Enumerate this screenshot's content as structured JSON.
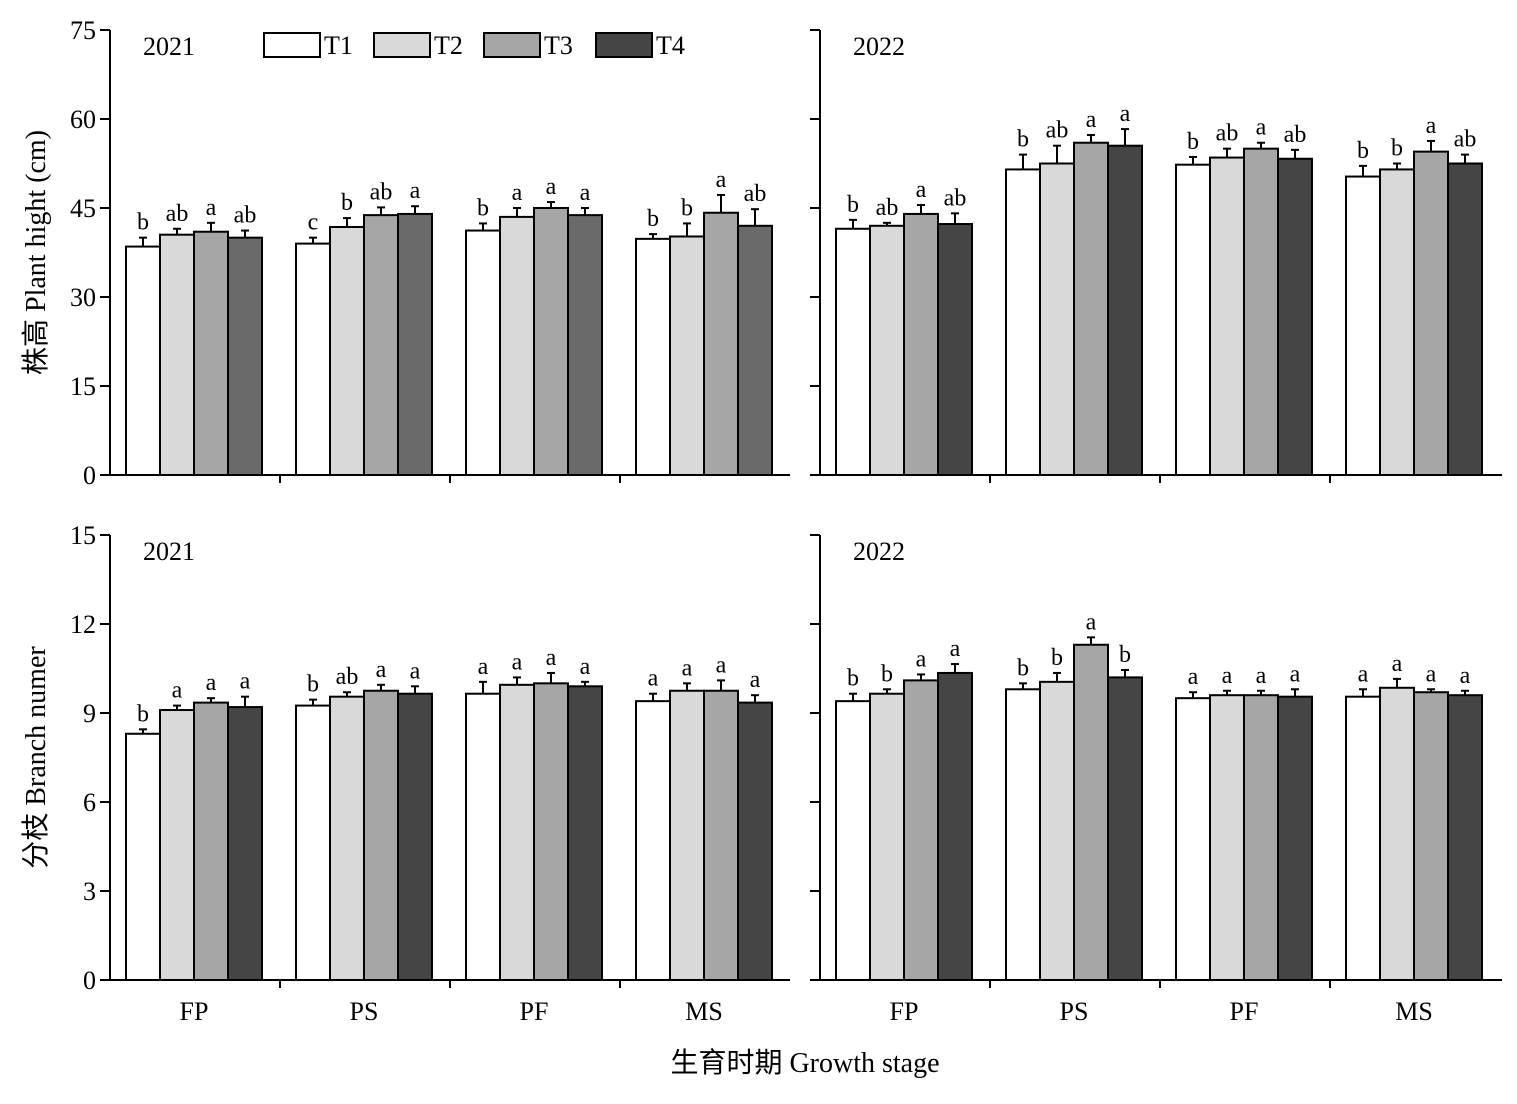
{
  "chart_data": {
    "type": "bar",
    "series_names": [
      "T1",
      "T2",
      "T3",
      "T4"
    ],
    "colors": {
      "T1": "#ffffff",
      "T2": "#d9d9d9",
      "T3": "#a6a6a6",
      "T4_2021_height": "#6a6a6a",
      "T4_dark": "#454545"
    },
    "categories": [
      "FP",
      "PS",
      "PF",
      "MS"
    ],
    "xlabel": "生育时期 Growth stage",
    "rows": [
      {
        "ylabel": "株高 Plant hight (cm)",
        "ylim": [
          0,
          75
        ],
        "yticks": [
          "0",
          "15",
          "30",
          "45",
          "60",
          "75"
        ],
        "panels": [
          {
            "year": "2021",
            "values": [
              [
                38.5,
                40.5,
                41,
                40
              ],
              [
                39,
                41.8,
                43.8,
                44
              ],
              [
                41.2,
                43.5,
                45,
                43.8
              ],
              [
                39.8,
                40.2,
                44.2,
                42
              ]
            ],
            "errors": [
              [
                1.5,
                1,
                1.5,
                1.2
              ],
              [
                1,
                1.5,
                1.3,
                1.3
              ],
              [
                1.2,
                1.5,
                1,
                1.2
              ],
              [
                0.8,
                2.2,
                3,
                2.8
              ]
            ],
            "sig": [
              [
                "b",
                "ab",
                "a",
                "ab"
              ],
              [
                "c",
                "b",
                "ab",
                "a"
              ],
              [
                "b",
                "a",
                "a",
                "a"
              ],
              [
                "b",
                "b",
                "a",
                "ab"
              ]
            ],
            "t4_color": "#6a6a6a"
          },
          {
            "year": "2022",
            "values": [
              [
                41.5,
                42,
                44,
                42.3
              ],
              [
                51.5,
                52.5,
                56,
                55.5
              ],
              [
                52.3,
                53.5,
                55,
                53.3
              ],
              [
                50.3,
                51.5,
                54.5,
                52.5
              ]
            ],
            "errors": [
              [
                1.5,
                0.5,
                1.5,
                1.8
              ],
              [
                2.5,
                3,
                1.3,
                2.8
              ],
              [
                1.3,
                1.5,
                1,
                1.5
              ],
              [
                1.8,
                1,
                1.8,
                1.5
              ]
            ],
            "sig": [
              [
                "b",
                "ab",
                "a",
                "ab"
              ],
              [
                "b",
                "ab",
                "a",
                "a"
              ],
              [
                "b",
                "ab",
                "a",
                "ab"
              ],
              [
                "b",
                "b",
                "a",
                "ab"
              ]
            ],
            "t4_color": "#454545"
          }
        ]
      },
      {
        "ylabel": "分枝 Branch numer",
        "ylim": [
          0,
          15
        ],
        "yticks": [
          "0",
          "3",
          "6",
          "9",
          "12",
          "15"
        ],
        "panels": [
          {
            "year": "2021",
            "values": [
              [
                8.3,
                9.1,
                9.35,
                9.2
              ],
              [
                9.25,
                9.55,
                9.75,
                9.65
              ],
              [
                9.65,
                9.95,
                10,
                9.9
              ],
              [
                9.4,
                9.75,
                9.75,
                9.35
              ]
            ],
            "errors": [
              [
                0.15,
                0.15,
                0.15,
                0.35
              ],
              [
                0.2,
                0.15,
                0.2,
                0.25
              ],
              [
                0.4,
                0.25,
                0.35,
                0.15
              ],
              [
                0.25,
                0.25,
                0.35,
                0.25
              ]
            ],
            "sig": [
              [
                "b",
                "a",
                "a",
                "a"
              ],
              [
                "b",
                "ab",
                "a",
                "a"
              ],
              [
                "a",
                "a",
                "a",
                "a"
              ],
              [
                "a",
                "a",
                "a",
                "a"
              ]
            ],
            "t4_color": "#454545"
          },
          {
            "year": "2022",
            "values": [
              [
                9.4,
                9.65,
                10.1,
                10.35
              ],
              [
                9.8,
                10.05,
                11.3,
                10.2
              ],
              [
                9.5,
                9.6,
                9.6,
                9.55
              ],
              [
                9.55,
                9.85,
                9.7,
                9.6
              ]
            ],
            "errors": [
              [
                0.25,
                0.15,
                0.2,
                0.3
              ],
              [
                0.2,
                0.3,
                0.25,
                0.25
              ],
              [
                0.2,
                0.15,
                0.15,
                0.25
              ],
              [
                0.25,
                0.3,
                0.1,
                0.15
              ]
            ],
            "sig": [
              [
                "b",
                "b",
                "a",
                "a"
              ],
              [
                "b",
                "b",
                "a",
                "b"
              ],
              [
                "a",
                "a",
                "a",
                "a"
              ],
              [
                "a",
                "a",
                "a",
                "a"
              ]
            ],
            "t4_color": "#454545"
          }
        ]
      }
    ]
  }
}
